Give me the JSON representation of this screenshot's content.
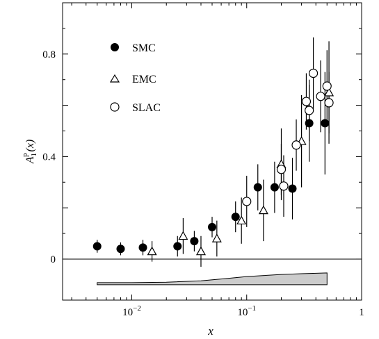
{
  "chart_data": {
    "type": "scatter",
    "x_scale": "log",
    "xlim": [
      0.0025,
      1
    ],
    "ylim": [
      -0.16,
      1.0
    ],
    "xlabel": "x",
    "ylabel_main": "A",
    "ylabel_sub": "1",
    "ylabel_sup": "p",
    "ylabel_arg": "(x)",
    "y_ticks": [
      {
        "value": 0,
        "label": "0"
      },
      {
        "value": 0.4,
        "label": "0.4"
      },
      {
        "value": 0.8,
        "label": "0.8"
      }
    ],
    "x_ticks": [
      {
        "value": 0.01,
        "base": "10",
        "exp": "−2"
      },
      {
        "value": 0.1,
        "base": "10",
        "exp": "−1"
      },
      {
        "value": 1,
        "base": "1",
        "exp": ""
      }
    ],
    "zero_line": 0,
    "legend": {
      "placement": "top-left"
    },
    "series": [
      {
        "name": "SMC",
        "marker": "filled-circle",
        "points": [
          {
            "x": 0.005,
            "y": 0.05,
            "err": 0.025
          },
          {
            "x": 0.008,
            "y": 0.04,
            "err": 0.025
          },
          {
            "x": 0.0125,
            "y": 0.045,
            "err": 0.03
          },
          {
            "x": 0.025,
            "y": 0.05,
            "err": 0.04
          },
          {
            "x": 0.035,
            "y": 0.07,
            "err": 0.04
          },
          {
            "x": 0.05,
            "y": 0.125,
            "err": 0.04
          },
          {
            "x": 0.08,
            "y": 0.165,
            "err": 0.06
          },
          {
            "x": 0.125,
            "y": 0.28,
            "err": 0.09
          },
          {
            "x": 0.175,
            "y": 0.28,
            "err": 0.1
          },
          {
            "x": 0.25,
            "y": 0.275,
            "err": 0.12
          },
          {
            "x": 0.35,
            "y": 0.53,
            "err": 0.15
          },
          {
            "x": 0.48,
            "y": 0.53,
            "err": 0.2
          }
        ]
      },
      {
        "name": "EMC",
        "marker": "open-triangle",
        "points": [
          {
            "x": 0.015,
            "y": 0.03,
            "err": 0.04
          },
          {
            "x": 0.028,
            "y": 0.09,
            "err": 0.07
          },
          {
            "x": 0.04,
            "y": 0.03,
            "err": 0.06
          },
          {
            "x": 0.055,
            "y": 0.08,
            "err": 0.07
          },
          {
            "x": 0.09,
            "y": 0.15,
            "err": 0.09
          },
          {
            "x": 0.14,
            "y": 0.19,
            "err": 0.12
          },
          {
            "x": 0.2,
            "y": 0.37,
            "err": 0.14
          },
          {
            "x": 0.3,
            "y": 0.46,
            "err": 0.18
          },
          {
            "x": 0.52,
            "y": 0.65,
            "err": 0.2
          }
        ]
      },
      {
        "name": "SLAC",
        "marker": "open-circle",
        "points": [
          {
            "x": 0.1,
            "y": 0.225,
            "err": 0.1
          },
          {
            "x": 0.2,
            "y": 0.35,
            "err": 0.1
          },
          {
            "x": 0.21,
            "y": 0.285,
            "err": 0.12
          },
          {
            "x": 0.27,
            "y": 0.445,
            "err": 0.1
          },
          {
            "x": 0.33,
            "y": 0.615,
            "err": 0.11
          },
          {
            "x": 0.35,
            "y": 0.58,
            "err": 0.12
          },
          {
            "x": 0.38,
            "y": 0.725,
            "err": 0.14
          },
          {
            "x": 0.44,
            "y": 0.635,
            "err": 0.14
          },
          {
            "x": 0.5,
            "y": 0.675,
            "err": 0.14
          },
          {
            "x": 0.52,
            "y": 0.61,
            "err": 0.12
          }
        ]
      }
    ],
    "systematic_band": {
      "fill": "#cccccc",
      "x": [
        0.005,
        0.01,
        0.02,
        0.04,
        0.07,
        0.1,
        0.2,
        0.3,
        0.5
      ],
      "upper": [
        -0.092,
        -0.092,
        -0.09,
        -0.085,
        -0.075,
        -0.068,
        -0.06,
        -0.057,
        -0.054
      ],
      "lower": [
        -0.1,
        -0.1,
        -0.1,
        -0.1,
        -0.1,
        -0.1,
        -0.1,
        -0.1,
        -0.1
      ]
    }
  }
}
